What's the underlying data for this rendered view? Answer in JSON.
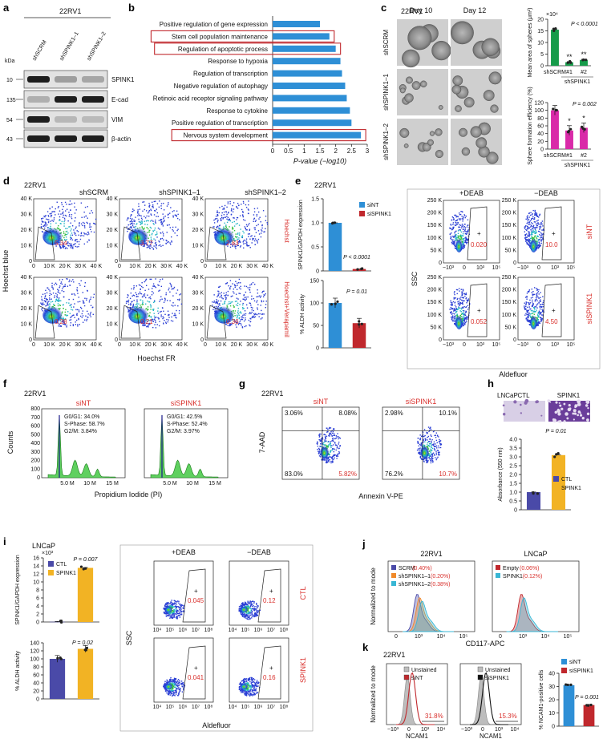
{
  "colors": {
    "blue": "#2e8fd6",
    "red": "#c0282d",
    "green": "#169b4a",
    "magenta": "#d92aa8",
    "navy": "#4a4aa8",
    "gold": "#f2b324",
    "cyan": "#38b6d4",
    "orange": "#f08a2a",
    "gray": "#bdbdbd"
  },
  "panels": [
    "a",
    "b",
    "c",
    "d",
    "e",
    "f",
    "g",
    "h",
    "i",
    "j",
    "k"
  ],
  "a": {
    "cell_line": "22RV1",
    "kda": "kDa",
    "lanes": [
      "shSCRM",
      "shSPINK1–1",
      "shSPINK1–2"
    ],
    "rows": [
      {
        "kda": "10",
        "label": "SPINK1"
      },
      {
        "kda": "135",
        "label": "E-cad"
      },
      {
        "kda": "54",
        "label": "VIM"
      },
      {
        "kda": "43",
        "label": "β-actin"
      }
    ]
  },
  "b": {
    "chart_data": {
      "type": "bar",
      "orientation": "horizontal",
      "categories": [
        "Positive regulation of gene expression",
        "Stem cell population maintenance",
        "Regulation of apoptotic process",
        "Response to hypoxia",
        "Regulation of transcription",
        "Negative regulation of autophagy",
        "Retinoic acid receptor signaling pathway",
        "Response to cytokine",
        "Positive regulation of transcription",
        "Nervous system development"
      ],
      "values": [
        1.5,
        1.8,
        2.0,
        2.15,
        2.2,
        2.3,
        2.35,
        2.45,
        2.5,
        2.8
      ],
      "highlighted": [
        "Stem cell population maintenance",
        "Regulation of apoptotic process",
        "Nervous system development"
      ],
      "ticks": [
        "0",
        "0.5",
        "1",
        "1.5",
        "2",
        "2.5",
        "3"
      ],
      "xlim": [
        0,
        3
      ],
      "xlabel": "P-value (−log10)"
    }
  },
  "c": {
    "cell_line": "22RV1",
    "days": [
      "Day 10",
      "Day 12"
    ],
    "rows": [
      "shSCRM",
      "shSPINK1–1",
      "shSPINK1–2"
    ],
    "chart_data": [
      {
        "type": "bar",
        "categories": [
          "shSCRM",
          "#1",
          "#2"
        ],
        "values": [
          15.5,
          1.5,
          2.5
        ],
        "ylim": [
          0,
          20
        ],
        "ticks": [
          "0",
          "5",
          "10",
          "15",
          "20"
        ],
        "exponent": "×10⁴",
        "ylabel": "Mean area of spheres (μm²)",
        "pvalue": "P < 0.0001",
        "stars": [
          "",
          "**",
          "**"
        ],
        "group": "shSPINK1"
      },
      {
        "type": "bar",
        "categories": [
          "shSCRM",
          "#1",
          "#2"
        ],
        "values": [
          100,
          48,
          55
        ],
        "ylim": [
          0,
          120
        ],
        "ticks": [
          "0",
          "20",
          "40",
          "60",
          "80",
          "100",
          "120"
        ],
        "ylabel": "Sphere formation efficiency (%)",
        "pvalue": "P = 0.002",
        "stars": [
          "",
          "*",
          "*"
        ],
        "group": "shSPINK1"
      }
    ]
  },
  "d": {
    "cell_line": "22RV1",
    "cols": [
      "shSCRM",
      "shSPINK1–1",
      "shSPINK1–2"
    ],
    "rows": [
      "Hoechst",
      "Hoechst+Verapamil"
    ],
    "values": [
      [
        "5.34",
        "3.77",
        "2.83"
      ],
      [
        "0.28",
        "0.21",
        "0.36"
      ]
    ],
    "yticks": [
      "0",
      "10 K",
      "20 K",
      "30 K",
      "40 K"
    ],
    "xticks": [
      "0",
      "10 K",
      "20 K",
      "30 K",
      "40 K"
    ],
    "ylabel": "Hoechst blue",
    "xlabel": "Hoechst FR"
  },
  "e": {
    "cell_line": "22RV1",
    "chart_data": [
      {
        "type": "bar",
        "categories": [
          "siNT",
          "siSPINK1"
        ],
        "values": [
          1.0,
          0.04
        ],
        "ylim": [
          0,
          1.5
        ],
        "ticks": [
          "0",
          "0.5",
          "1.0",
          "1.5"
        ],
        "ylabel": "SPINK1/GAPDH expression",
        "pvalue": "P < 0.0001",
        "legend": [
          "siNT",
          "siSPINK1"
        ]
      },
      {
        "type": "bar",
        "categories": [
          "siNT",
          "siSPINK1"
        ],
        "values": [
          100,
          55
        ],
        "ylim": [
          0,
          150
        ],
        "ticks": [
          "0",
          "50",
          "100",
          "150"
        ],
        "ylabel": "% ALDH activity",
        "pvalue": "P = 0.01"
      }
    ],
    "flow": {
      "cols": [
        "+DEAB",
        "−DEAB"
      ],
      "rows": [
        "siNT",
        "siSPINK1"
      ],
      "values": [
        [
          "0.020",
          "10.0"
        ],
        [
          "0.052",
          "4.50"
        ]
      ],
      "ylabel": "SSC",
      "xlabel": "Aldefluor",
      "yticks": [
        "0",
        "50 K",
        "100 K",
        "150 K",
        "200 K",
        "250 K"
      ],
      "xticks": [
        "−10³",
        "0",
        "10³",
        "10⁵"
      ]
    }
  },
  "f": {
    "cell_line": "22RV1",
    "xlabel": "Propidium Iodide (PI)",
    "ylabel": "Counts",
    "yticks": [
      "0",
      "100",
      "200",
      "300",
      "400",
      "500",
      "600",
      "700",
      "800"
    ],
    "xticks": [
      "5.0 M",
      "10 M",
      "15 M"
    ],
    "histos": [
      {
        "title": "siNT",
        "g1": "G0/G1: 34.0%",
        "s": "S-Phase: 58.7%",
        "g2": "G2/M: 3.84%"
      },
      {
        "title": "siSPINK1",
        "g1": "G0/G1: 42.5%",
        "s": "S-Phase: 52.4%",
        "g2": "G2/M: 3.97%"
      }
    ]
  },
  "g": {
    "cell_line": "22RV1",
    "ylabel": "7-AAD",
    "xlabel": "Annexin V-PE",
    "plots": [
      {
        "title": "siNT",
        "q": [
          "3.06%",
          "8.08%",
          "83.0%",
          "5.82%"
        ]
      },
      {
        "title": "siSPINK1",
        "q": [
          "2.98%",
          "10.1%",
          "76.2%",
          "10.7%"
        ]
      }
    ]
  },
  "h": {
    "cell_line": "LNCaP",
    "images": [
      "CTL",
      "SPINK1"
    ],
    "chart_data": {
      "type": "bar",
      "categories": [
        "CTL",
        "SPINK1"
      ],
      "values": [
        1.0,
        3.1
      ],
      "ylim": [
        0,
        4.0
      ],
      "ticks": [
        "0",
        "0.5",
        "1.0",
        "1.5",
        "2.0",
        "2.5",
        "3.0",
        "3.5",
        "4.0"
      ],
      "ylabel": "Absorbance (550 nm)",
      "pvalue": "P = 0.01",
      "legend": [
        "CTL",
        "SPINK1"
      ]
    }
  },
  "i": {
    "cell_line": "LNCaP",
    "chart_data": [
      {
        "type": "bar",
        "categories": [
          "CTL",
          "SPINK1"
        ],
        "values": [
          0.05,
          13.5
        ],
        "ylim": [
          0,
          16
        ],
        "ticks": [
          "0",
          "2",
          "4",
          "6",
          "8",
          "10",
          "12",
          "14",
          "16"
        ],
        "exponent": "×10³",
        "ylabel": "SPINK1/GAPDH expression",
        "pvalue": "P = 0.007",
        "legend": [
          "CTL",
          "SPINK1"
        ]
      },
      {
        "type": "bar",
        "categories": [
          "CTL",
          "SPINK1"
        ],
        "values": [
          100,
          125
        ],
        "ylim": [
          0,
          140
        ],
        "ticks": [
          "0",
          "20",
          "40",
          "60",
          "80",
          "100",
          "120",
          "140"
        ],
        "ylabel": "% ALDH activity",
        "pvalue": "P = 0.02"
      }
    ],
    "flow": {
      "cols": [
        "+DEAB",
        "−DEAB"
      ],
      "rows": [
        "CTL",
        "SPINK1"
      ],
      "values": [
        [
          "0.045",
          "0.12"
        ],
        [
          "0.041",
          "0.16"
        ]
      ],
      "ylabel": "SSC",
      "xlabel": "Aldefluor",
      "xticks": [
        "10⁴",
        "10⁵",
        "10⁶",
        "10⁷",
        "10⁸"
      ]
    }
  },
  "j": {
    "xlabel": "CD117-APC",
    "ylabel": "Normalized to mode",
    "plots": [
      {
        "title": "22RV1",
        "legend": [
          {
            "name": "SCRM",
            "val": "(0.40%)"
          },
          {
            "name": "shSPINK1–1",
            "val": "(0.20%)"
          },
          {
            "name": "shSPINK1–2",
            "val": "(0.38%)"
          }
        ]
      },
      {
        "title": "LNCaP",
        "legend": [
          {
            "name": "Empty",
            "val": "(0.06%)"
          },
          {
            "name": "SPINK1",
            "val": "(0.12%)"
          }
        ]
      }
    ],
    "xticks": [
      "0",
      "10³",
      "10⁴",
      "10⁵"
    ]
  },
  "k": {
    "cell_line": "22RV1",
    "xlabel": "NCAM1",
    "ylabel": "Normalized to mode",
    "plots": [
      {
        "legend": [
          "Unstained",
          "siNT"
        ],
        "value": "31.8%"
      },
      {
        "legend": [
          "Unstained",
          "siSPINK1"
        ],
        "value": "15.3%"
      }
    ],
    "xticks": [
      "−10³",
      "0",
      "10³",
      "10⁴"
    ],
    "chart_data": {
      "type": "bar",
      "categories": [
        "siNT",
        "siSPINK1"
      ],
      "values": [
        31,
        16
      ],
      "ylim": [
        0,
        40
      ],
      "ticks": [
        "0",
        "10",
        "20",
        "30",
        "40"
      ],
      "ylabel": "% NCAM1-positive cells",
      "pvalue": "P = 0.001",
      "legend": [
        "siNT",
        "siSPINK1"
      ]
    }
  }
}
